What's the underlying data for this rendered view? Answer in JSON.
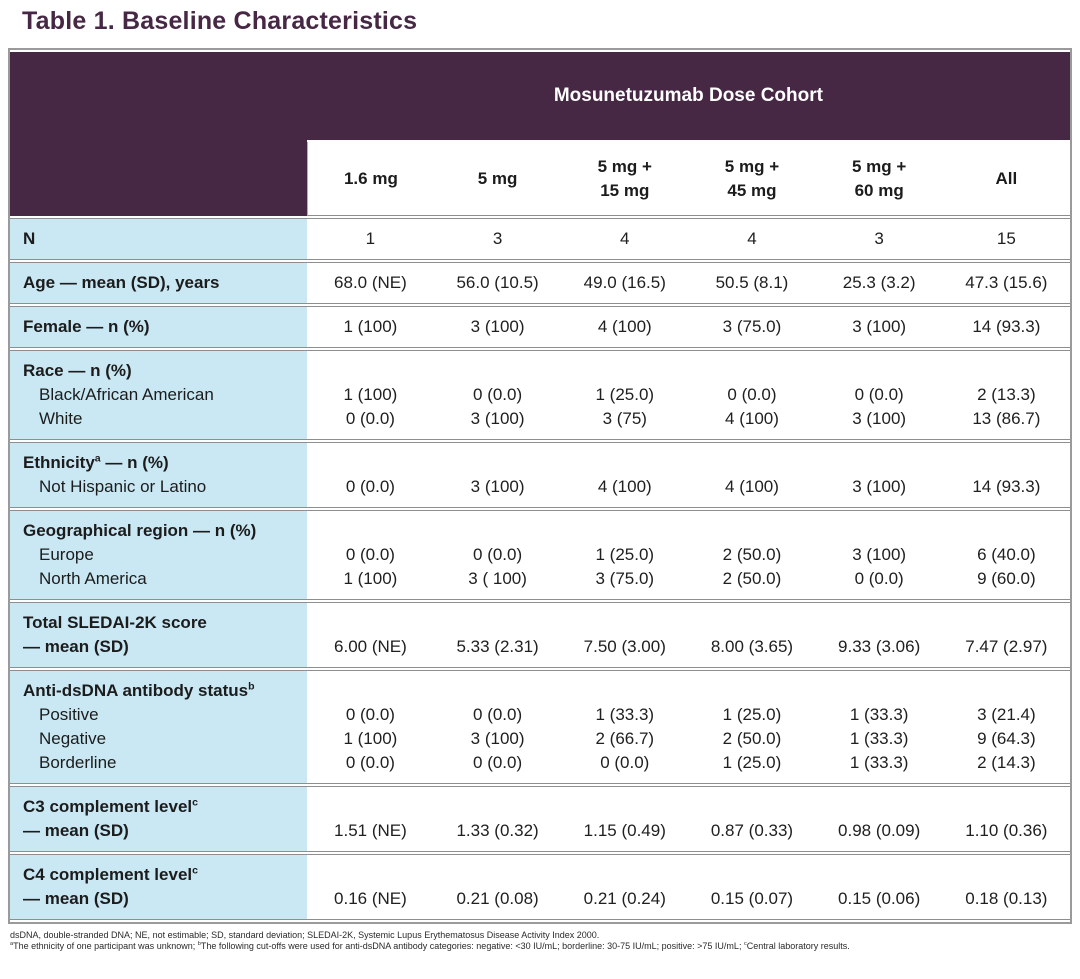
{
  "page": {
    "title": "Table 1. Baseline Characteristics"
  },
  "colors": {
    "header_purple": "#462845",
    "label_blue": "#c9e8f3",
    "row_line_gray": "#8e8e8e",
    "title_purple": "#462845"
  },
  "table": {
    "banner": "Mosunetuzumab Dose Cohort",
    "columns": [
      [
        "1.6 mg"
      ],
      [
        "5 mg"
      ],
      [
        "5 mg +",
        "15 mg"
      ],
      [
        "5 mg +",
        "45 mg"
      ],
      [
        "5 mg +",
        "60 mg"
      ],
      [
        "All"
      ]
    ],
    "rows": [
      {
        "label": [
          {
            "text": "N",
            "bold": true
          }
        ],
        "cells": [
          [
            "1"
          ],
          [
            "3"
          ],
          [
            "4"
          ],
          [
            "4"
          ],
          [
            "3"
          ],
          [
            "15"
          ]
        ]
      },
      {
        "label": [
          {
            "text": "Age — mean (SD), years",
            "bold": true
          }
        ],
        "cells": [
          [
            "68.0 (NE)"
          ],
          [
            "56.0 (10.5)"
          ],
          [
            "49.0 (16.5)"
          ],
          [
            "50.5 (8.1)"
          ],
          [
            "25.3 (3.2)"
          ],
          [
            "47.3 (15.6)"
          ]
        ]
      },
      {
        "label": [
          {
            "text": "Female — n (%)",
            "bold": true
          }
        ],
        "cells": [
          [
            "1 (100)"
          ],
          [
            "3 (100)"
          ],
          [
            "4 (100)"
          ],
          [
            "3 (75.0)"
          ],
          [
            "3 (100)"
          ],
          [
            "14 (93.3)"
          ]
        ]
      },
      {
        "label": [
          {
            "text": "Race — n (%)",
            "bold": true
          },
          {
            "text": "Black/African American",
            "indent": true
          },
          {
            "text": "White",
            "indent": true
          }
        ],
        "cells": [
          [
            "1 (100)",
            "0 (0.0)"
          ],
          [
            "0 (0.0)",
            "3 (100)"
          ],
          [
            "1 (25.0)",
            "3 (75)"
          ],
          [
            "0 (0.0)",
            "4 (100)"
          ],
          [
            "0 (0.0)",
            "3 (100)"
          ],
          [
            "2 (13.3)",
            "13 (86.7)"
          ]
        ]
      },
      {
        "label": [
          {
            "text": "Ethnicity^a — n (%)",
            "bold": true
          },
          {
            "text": "Not Hispanic or Latino",
            "indent": true
          }
        ],
        "cells": [
          [
            "0 (0.0)"
          ],
          [
            "3 (100)"
          ],
          [
            "4 (100)"
          ],
          [
            "4 (100)"
          ],
          [
            "3 (100)"
          ],
          [
            "14 (93.3)"
          ]
        ]
      },
      {
        "label": [
          {
            "text": "Geographical region — n (%)",
            "bold": true
          },
          {
            "text": "Europe",
            "indent": true
          },
          {
            "text": "North America",
            "indent": true
          }
        ],
        "cells": [
          [
            "0 (0.0)",
            "1 (100)"
          ],
          [
            "0 (0.0)",
            "3 ( 100)"
          ],
          [
            "1 (25.0)",
            "3 (75.0)"
          ],
          [
            "2 (50.0)",
            "2 (50.0)"
          ],
          [
            "3 (100)",
            "0 (0.0)"
          ],
          [
            "6 (40.0)",
            "9 (60.0)"
          ]
        ]
      },
      {
        "label": [
          {
            "text": "Total SLEDAI-2K score",
            "bold": true
          },
          {
            "text": "— mean (SD)",
            "bold": true
          }
        ],
        "cells": [
          [
            "6.00 (NE)"
          ],
          [
            "5.33 (2.31)"
          ],
          [
            "7.50 (3.00)"
          ],
          [
            "8.00 (3.65)"
          ],
          [
            "9.33 (3.06)"
          ],
          [
            "7.47 (2.97)"
          ]
        ]
      },
      {
        "label": [
          {
            "text": "Anti-dsDNA antibody status^b",
            "bold": true
          },
          {
            "text": "Positive",
            "indent": true
          },
          {
            "text": "Negative",
            "indent": true
          },
          {
            "text": "Borderline",
            "indent": true
          }
        ],
        "cells": [
          [
            "0 (0.0)",
            "1 (100)",
            "0 (0.0)"
          ],
          [
            "0 (0.0)",
            "3 (100)",
            "0 (0.0)"
          ],
          [
            "1 (33.3)",
            "2 (66.7)",
            "0 (0.0)"
          ],
          [
            "1 (25.0)",
            "2 (50.0)",
            "1 (25.0)"
          ],
          [
            "1 (33.3)",
            "1 (33.3)",
            "1 (33.3)"
          ],
          [
            "3 (21.4)",
            "9 (64.3)",
            "2 (14.3)"
          ]
        ]
      },
      {
        "label": [
          {
            "text": "C3 complement level^c",
            "bold": true
          },
          {
            "text": "— mean (SD)",
            "bold": true
          }
        ],
        "cells": [
          [
            "1.51 (NE)"
          ],
          [
            "1.33 (0.32)"
          ],
          [
            "1.15 (0.49)"
          ],
          [
            "0.87 (0.33)"
          ],
          [
            "0.98 (0.09)"
          ],
          [
            "1.10 (0.36)"
          ]
        ]
      },
      {
        "label": [
          {
            "text": "C4 complement level^c",
            "bold": true
          },
          {
            "text": "— mean (SD)",
            "bold": true
          }
        ],
        "cells": [
          [
            "0.16 (NE)"
          ],
          [
            "0.21 (0.08)"
          ],
          [
            "0.21 (0.24)"
          ],
          [
            "0.15 (0.07)"
          ],
          [
            "0.15 (0.06)"
          ],
          [
            "0.18 (0.13)"
          ]
        ]
      }
    ]
  },
  "footnotes": [
    "dsDNA, double-stranded DNA; NE, not estimable; SD, standard deviation; SLEDAI-2K, Systemic Lupus Erythematosus Disease Activity Index 2000.",
    "^aThe ethnicity of one participant was unknown; ^bThe following cut-offs were used for anti-dsDNA antibody categories: negative: <30 IU/mL; borderline: 30-75 IU/mL; positive: >75 IU/mL; ^cCentral laboratory results."
  ]
}
